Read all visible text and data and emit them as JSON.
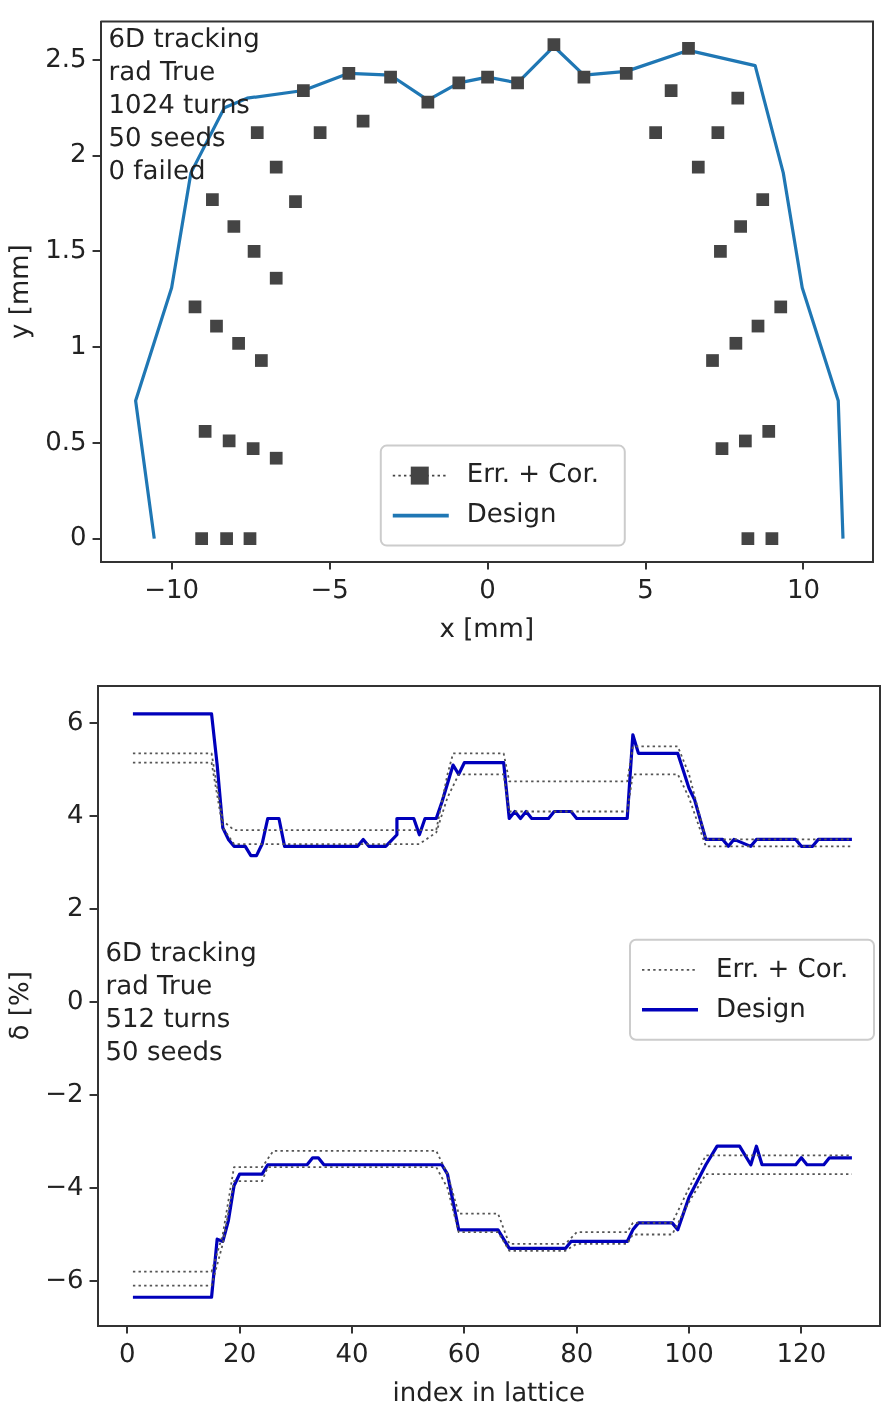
{
  "chart_data": [
    {
      "type": "line",
      "xlabel": "x [mm]",
      "ylabel": "y [mm]",
      "annotations": [
        "6D tracking",
        "rad True",
        "1024 turns",
        "50 seeds",
        "0 failed"
      ],
      "xlim": [
        -12.25,
        12.2
      ],
      "xticks": [
        -10,
        -5,
        0,
        5,
        10
      ],
      "ylim": [
        -0.12,
        2.7
      ],
      "yticks": [
        0,
        0.5,
        1,
        1.5,
        2,
        2.5
      ],
      "grid": false,
      "legend": "bottom",
      "series": [
        {
          "name": "Err. + Cor.",
          "type": "scatter",
          "marker": "square",
          "color": "#444444",
          "x": [
            -9.05,
            -8.26,
            -7.52,
            -8.94,
            -8.18,
            -7.42,
            -6.69,
            -9.26,
            -8.58,
            -7.88,
            -7.16,
            -6.69,
            -8.03,
            -7.39,
            -8.71,
            -6.08,
            -6.69,
            -7.29,
            -5.3,
            -5.83,
            -3.94,
            -4.39,
            -3.07,
            -1.89,
            -0.91,
            0,
            0.95,
            2.1,
            3.05,
            4.39,
            6.36,
            5.81,
            7.92,
            5.32,
            7.29,
            6.67,
            8.71,
            8.01,
            7.37,
            9.28,
            8.56,
            7.86,
            7.12,
            8.9,
            8.16,
            7.42,
            8.24,
            9.0
          ],
          "values": [
            0,
            0,
            0,
            0.56,
            0.51,
            0.47,
            0.42,
            1.21,
            1.11,
            1.02,
            0.93,
            1.36,
            1.63,
            1.5,
            1.77,
            1.76,
            1.94,
            2.12,
            2.12,
            2.34,
            2.18,
            2.43,
            2.41,
            2.28,
            2.38,
            2.41,
            2.38,
            2.58,
            2.41,
            2.43,
            2.56,
            2.34,
            2.3,
            2.12,
            2.12,
            1.94,
            1.77,
            1.63,
            1.5,
            1.21,
            1.11,
            1.02,
            0.93,
            0.56,
            0.51,
            0.47,
            0,
            0
          ]
        },
        {
          "name": "Design",
          "type": "line",
          "color": "#1f77b4",
          "x": [
            -10.55,
            -11.14,
            -10.0,
            -9.39,
            -8.33,
            -7.61,
            -5.83,
            -4.39,
            -3.07,
            -1.89,
            -0.91,
            0,
            0.95,
            2.1,
            3.05,
            4.39,
            6.36,
            8.47,
            9.36,
            9.96,
            11.1,
            11.25
          ],
          "values": [
            0,
            0.72,
            1.31,
            1.91,
            2.25,
            2.3,
            2.34,
            2.43,
            2.42,
            2.29,
            2.38,
            2.41,
            2.38,
            2.57,
            2.42,
            2.44,
            2.55,
            2.47,
            1.91,
            1.31,
            0.72,
            0
          ]
        }
      ]
    },
    {
      "type": "line",
      "xlabel": "index in lattice",
      "ylabel": "δ [%]",
      "annotations": [
        "6D tracking",
        "rad True",
        "512 turns",
        "50 seeds"
      ],
      "xlim": [
        -5.3,
        134
      ],
      "xticks": [
        0,
        20,
        40,
        60,
        80,
        100,
        120
      ],
      "ylim": [
        -6.96,
        6.8
      ],
      "yticks": [
        -6,
        -4,
        -2,
        0,
        2,
        4,
        6
      ],
      "grid": false,
      "legend": "right",
      "series": [
        {
          "name": "Err. + Cor.",
          "line_style": "dotted",
          "color": "#555555",
          "x": [
            1,
            15,
            17,
            19,
            55,
            57,
            58,
            67,
            68,
            89,
            90,
            98,
            100,
            103,
            129
          ],
          "values": [
            5.35,
            5.35,
            3.9,
            3.7,
            3.7,
            4.9,
            5.35,
            5.35,
            4.75,
            4.75,
            5.5,
            5.5,
            4.9,
            3.5,
            3.5
          ]
        },
        {
          "line_style": "dotted",
          "color": "#555555",
          "x": [
            1,
            15,
            17,
            19,
            52,
            55,
            57,
            59,
            67,
            68,
            89,
            90,
            98,
            100,
            103,
            129
          ],
          "values": [
            5.15,
            5.15,
            3.75,
            3.4,
            3.4,
            3.65,
            4.4,
            4.9,
            4.9,
            4.1,
            4.1,
            4.9,
            4.9,
            4.4,
            3.35,
            3.35
          ]
        },
        {
          "line_style": "dotted",
          "color": "#555555",
          "x": [
            1,
            15,
            17,
            19,
            24,
            26,
            55,
            57,
            59,
            66,
            68,
            78,
            80,
            89,
            90,
            97,
            100,
            103,
            129
          ],
          "values": [
            -5.8,
            -5.8,
            -5,
            -3.55,
            -3.55,
            -3.2,
            -3.2,
            -3.7,
            -4.55,
            -4.55,
            -5.2,
            -5.2,
            -4.95,
            -4.95,
            -4.75,
            -4.75,
            -4.0,
            -3.3,
            -3.3
          ]
        },
        {
          "line_style": "dotted",
          "color": "#555555",
          "x": [
            1,
            15,
            17,
            19,
            24,
            25,
            55,
            57,
            59,
            66,
            68,
            78,
            80,
            89,
            90,
            97,
            100,
            103,
            129
          ],
          "values": [
            -6.1,
            -6.1,
            -5.2,
            -3.85,
            -3.85,
            -3.55,
            -3.55,
            -4,
            -4.95,
            -4.95,
            -5.35,
            -5.35,
            -5.2,
            -5.2,
            -5.0,
            -5.0,
            -4.3,
            -3.7,
            -3.7
          ]
        },
        {
          "name": "Design",
          "color": "#0000bb",
          "x": [
            1,
            15,
            16,
            17,
            18,
            19,
            21,
            22,
            23,
            24,
            25,
            27,
            28,
            41,
            42,
            43,
            46,
            48,
            48,
            51,
            52,
            53,
            55,
            56,
            58,
            59,
            60,
            67,
            68,
            69,
            70,
            71,
            72,
            75,
            76,
            79,
            80,
            89,
            90,
            91,
            98,
            100,
            101,
            103,
            106,
            107,
            108,
            111,
            112,
            119,
            120,
            122,
            123,
            129
          ],
          "values": [
            6.2,
            6.2,
            5.1,
            3.75,
            3.5,
            3.35,
            3.35,
            3.15,
            3.15,
            3.4,
            3.95,
            3.95,
            3.35,
            3.35,
            3.5,
            3.35,
            3.35,
            3.6,
            3.95,
            3.95,
            3.6,
            3.95,
            3.95,
            4.3,
            5.1,
            4.9,
            5.15,
            5.15,
            3.95,
            4.1,
            3.95,
            4.1,
            3.95,
            3.95,
            4.1,
            4.1,
            3.95,
            3.95,
            5.75,
            5.35,
            5.35,
            4.6,
            4.35,
            3.5,
            3.5,
            3.35,
            3.5,
            3.35,
            3.5,
            3.5,
            3.35,
            3.35,
            3.5,
            3.5
          ]
        },
        {
          "color": "#0000bb",
          "x": [
            1,
            15,
            16,
            17,
            18,
            19,
            20,
            24,
            25,
            32,
            33,
            34,
            35,
            56,
            57,
            59,
            66,
            68,
            78,
            79,
            89,
            90,
            91,
            97,
            98,
            100,
            103,
            105,
            109,
            111,
            112,
            113,
            119,
            120,
            121,
            124,
            125,
            129
          ],
          "values": [
            -6.35,
            -6.35,
            -5.1,
            -5.15,
            -4.7,
            -3.95,
            -3.7,
            -3.7,
            -3.5,
            -3.5,
            -3.35,
            -3.35,
            -3.5,
            -3.5,
            -3.7,
            -4.9,
            -4.9,
            -5.3,
            -5.3,
            -5.15,
            -5.15,
            -4.9,
            -4.75,
            -4.75,
            -4.9,
            -4.2,
            -3.5,
            -3.1,
            -3.1,
            -3.5,
            -3.1,
            -3.5,
            -3.5,
            -3.35,
            -3.5,
            -3.5,
            -3.35,
            -3.35
          ]
        }
      ]
    }
  ]
}
